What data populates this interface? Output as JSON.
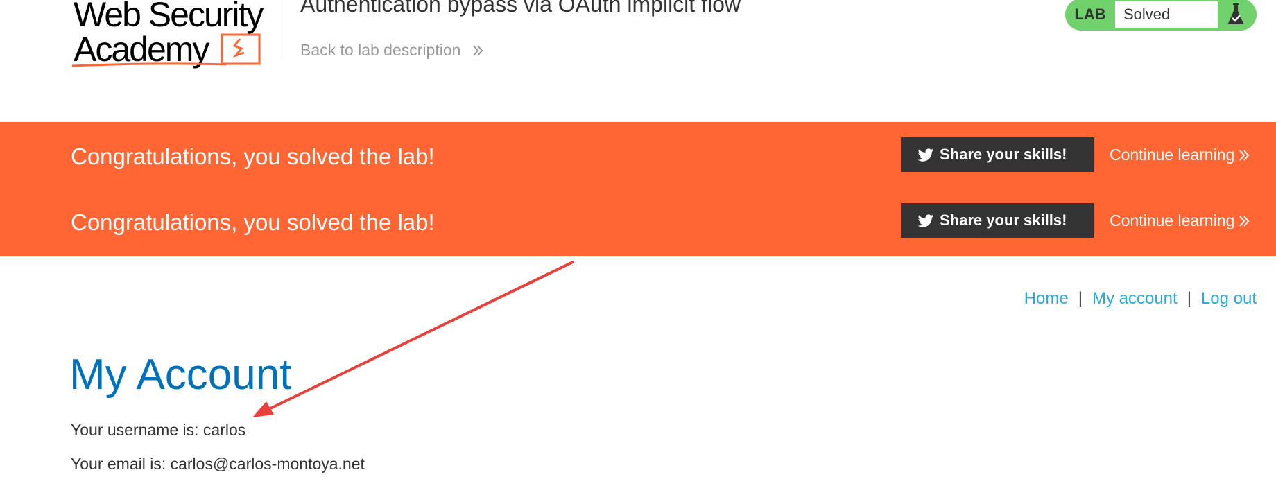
{
  "header": {
    "logo_text_line1": "Web Security",
    "logo_text_line2": "Academy",
    "lab_title": "Authentication bypass via OAuth implicit flow",
    "back_link": "Back to lab description"
  },
  "lab_status": {
    "label": "LAB",
    "state": "Solved",
    "icon": "flask-icon",
    "color": "#70d16d"
  },
  "notification": {
    "background": "#ff6633",
    "rows": [
      {
        "message": "Congratulations, you solved the lab!",
        "share_label": "Share your skills!",
        "continue_label": "Continue learning"
      },
      {
        "message": "Congratulations, you solved the lab!",
        "share_label": "Share your skills!",
        "continue_label": "Continue learning"
      }
    ]
  },
  "nav": {
    "home": "Home",
    "separator": "|",
    "my_account": "My account",
    "log_out": "Log out"
  },
  "content": {
    "title": "My Account",
    "username_line": "Your username is: carlos",
    "email_line": "Your email is: carlos@carlos-montoya.net"
  },
  "annotation": {
    "type": "arrow",
    "color": "#e8403a"
  }
}
